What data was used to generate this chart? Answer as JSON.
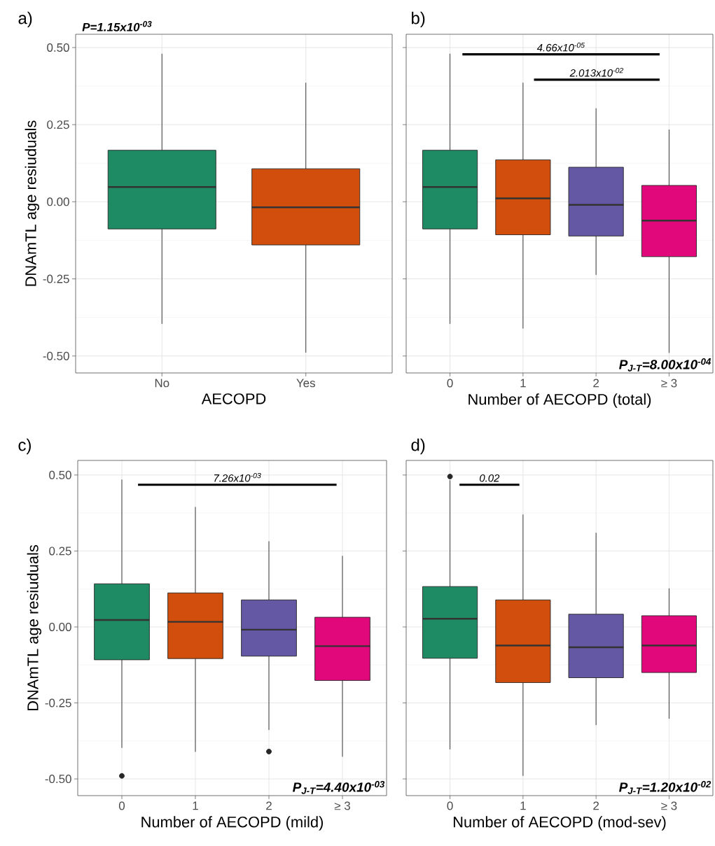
{
  "chart_data": [
    {
      "type": "box",
      "title": "a)",
      "xlabel": "AECOPD",
      "ylabel": "DNAmTL age resiuduals",
      "categories": [
        "No",
        "Yes"
      ],
      "colors": [
        "#1f8b65",
        "#d24e0c"
      ],
      "boxes": [
        {
          "low": -0.396,
          "q1": -0.088,
          "median": 0.048,
          "q3": 0.167,
          "high": 0.48
        },
        {
          "low": -0.489,
          "q1": -0.14,
          "median": -0.018,
          "q3": 0.107,
          "high": 0.386
        }
      ],
      "annotations": [
        "P=1.15x10$^{-03}$"
      ],
      "ylim": [
        -0.555,
        0.543
      ],
      "yticks": [
        {
          "value": -0.5,
          "label": "-0.50"
        },
        {
          "value": -0.25,
          "label": "-0.25"
        },
        {
          "value": 0,
          "label": "0.00"
        },
        {
          "value": 0.25,
          "label": "0.25"
        },
        {
          "value": 0.5,
          "label": "0.50"
        }
      ],
      "grid": true
    },
    {
      "type": "box",
      "title": "b)",
      "xlabel": "Number of AECOPD (total)",
      "categories": [
        "0",
        "1",
        "2",
        "≥ 3"
      ],
      "colors": [
        "#1f8b65",
        "#d24e0c",
        "#6458a5",
        "#e1087c"
      ],
      "boxes": [
        {
          "low": -0.396,
          "q1": -0.088,
          "median": 0.048,
          "q3": 0.167,
          "high": 0.48
        },
        {
          "low": -0.411,
          "q1": -0.107,
          "median": 0.011,
          "q3": 0.136,
          "high": 0.386
        },
        {
          "low": -0.237,
          "q1": -0.111,
          "median": -0.01,
          "q3": 0.112,
          "high": 0.303
        },
        {
          "low": -0.49,
          "q1": -0.178,
          "median": -0.061,
          "q3": 0.053,
          "high": 0.234
        }
      ],
      "annotations": [
        "4.66x10$^{-05}$",
        "2.013x10$^{-02}$",
        "P$_{J-T}$=8.00x10$^{-04}$"
      ],
      "ylim": [
        -0.555,
        0.543
      ],
      "yticks": [
        {
          "value": -0.5,
          "label": null
        },
        {
          "value": -0.25,
          "label": null
        },
        {
          "value": 0,
          "label": null
        },
        {
          "value": 0.25,
          "label": null
        },
        {
          "value": 0.5,
          "label": null
        }
      ],
      "grid": true,
      "tick_labels": "x"
    },
    {
      "type": "box",
      "title": "c)",
      "xlabel": "Number of AECOPD (mild)",
      "ylabel": "DNAmTL age resiuduals",
      "categories": [
        "0",
        "1",
        "2",
        "≥ 3"
      ],
      "colors": [
        "#1f8b65",
        "#d24e0c",
        "#6458a5",
        "#e1087c"
      ],
      "boxes": [
        {
          "low": -0.398,
          "q1": -0.108,
          "median": 0.023,
          "q3": 0.142,
          "high": 0.485,
          "outliers": [
            -0.49
          ]
        },
        {
          "low": -0.411,
          "q1": -0.104,
          "median": 0.017,
          "q3": 0.112,
          "high": 0.395
        },
        {
          "low": -0.339,
          "q1": -0.096,
          "median": -0.009,
          "q3": 0.089,
          "high": 0.282,
          "outliers": [
            -0.41
          ]
        },
        {
          "low": -0.427,
          "q1": -0.176,
          "median": -0.063,
          "q3": 0.032,
          "high": 0.234
        }
      ],
      "annotations": [
        "7.26x10$^{-03}$",
        "P$_{J-T}$=4.40x10$^{-03}$"
      ],
      "ylim": [
        -0.555,
        0.548
      ],
      "yticks": [
        {
          "value": -0.5,
          "label": "-0.50"
        },
        {
          "value": -0.25,
          "label": "-0.25"
        },
        {
          "value": 0,
          "label": "0.00"
        },
        {
          "value": 0.25,
          "label": "0.25"
        },
        {
          "value": 0.5,
          "label": "0.50"
        }
      ],
      "grid": true
    },
    {
      "type": "box",
      "title": "d)",
      "xlabel": "Number of AECOPD (mod-sev)",
      "categories": [
        "0",
        "1",
        "2",
        "≥ 3"
      ],
      "colors": [
        "#1f8b65",
        "#d24e0c",
        "#6458a5",
        "#e1087c"
      ],
      "boxes": [
        {
          "low": -0.403,
          "q1": -0.103,
          "median": 0.027,
          "q3": 0.133,
          "high": 0.483,
          "outliers": [
            0.495
          ]
        },
        {
          "low": -0.49,
          "q1": -0.183,
          "median": -0.061,
          "q3": 0.089,
          "high": 0.37
        },
        {
          "low": -0.323,
          "q1": -0.167,
          "median": -0.067,
          "q3": 0.042,
          "high": 0.31
        },
        {
          "low": -0.302,
          "q1": -0.15,
          "median": -0.061,
          "q3": 0.037,
          "high": 0.127
        }
      ],
      "annotations": [
        "0.02",
        "P$_{J-T}$=1.20x10$^{-02}$"
      ],
      "ylim": [
        -0.555,
        0.548
      ],
      "yticks": [
        {
          "value": -0.5,
          "label": null
        },
        {
          "value": -0.25,
          "label": null
        },
        {
          "value": 0,
          "label": null
        },
        {
          "value": 0.25,
          "label": null
        },
        {
          "value": 0.5,
          "label": null
        }
      ],
      "grid": true,
      "tick_labels": "x"
    }
  ]
}
